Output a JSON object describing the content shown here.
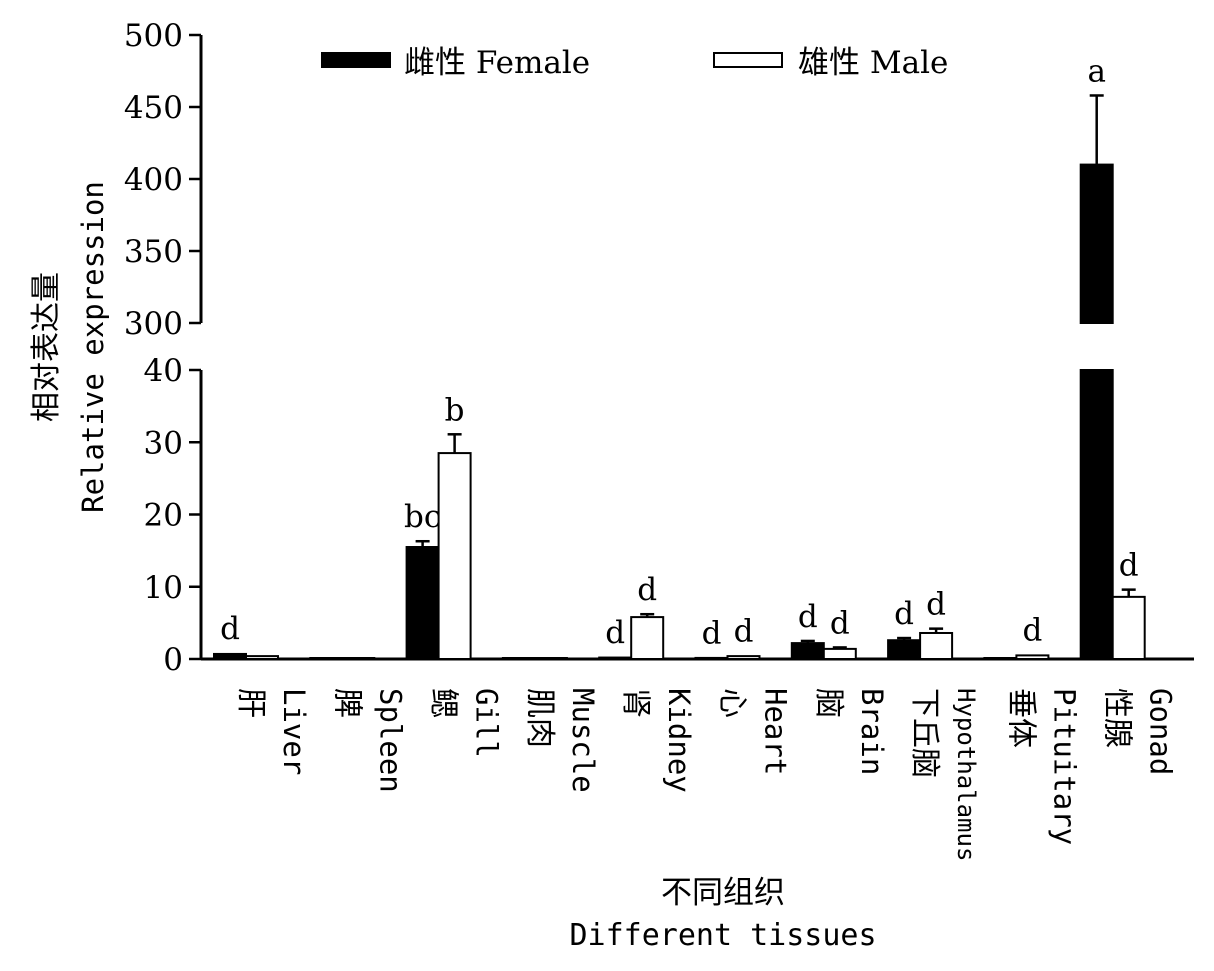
{
  "chart_data": {
    "type": "bar",
    "y_axis_break": true,
    "ylim_lower": [
      0,
      40
    ],
    "ylim_upper": [
      300,
      500
    ],
    "yticks_lower": [
      "0",
      "10",
      "20",
      "30",
      "40"
    ],
    "yticks_upper": [
      "300",
      "350",
      "400",
      "450",
      "500"
    ],
    "ylabel_cn": "相对表达量",
    "ylabel_en": "Relative expression",
    "xlabel_cn": "不同组织",
    "xlabel_en": "Different tissues",
    "categories": [
      {
        "cn": "肝",
        "en": "Liver"
      },
      {
        "cn": "脾",
        "en": "Spleen"
      },
      {
        "cn": "鳃",
        "en": "Gill"
      },
      {
        "cn": "肌肉",
        "en": "Muscle"
      },
      {
        "cn": "肾",
        "en": "Kidney"
      },
      {
        "cn": "心",
        "en": "Heart"
      },
      {
        "cn": "脑",
        "en": "Brain"
      },
      {
        "cn": "下丘脑",
        "en": "Hypothalamus"
      },
      {
        "cn": "垂体",
        "en": "Pituitary"
      },
      {
        "cn": "性腺",
        "en": "Gonad"
      }
    ],
    "legend_position": "top",
    "series": [
      {
        "name": "雌性 Female",
        "color": "#000000",
        "values": [
          0.7,
          0.05,
          15.5,
          0.05,
          0.2,
          0.15,
          2.2,
          2.6,
          0.1,
          410
        ],
        "errors": [
          0.1,
          0.0,
          0.8,
          0.0,
          0.1,
          0.05,
          0.3,
          0.3,
          0.05,
          48
        ],
        "letters": [
          "d",
          "",
          "bc",
          "",
          "d",
          "d",
          "d",
          "d",
          "",
          "a"
        ]
      },
      {
        "name": "雄性 Male",
        "color": "#ffffff",
        "values": [
          0.4,
          0.05,
          28.5,
          0.05,
          5.8,
          0.4,
          1.4,
          3.6,
          0.5,
          8.6
        ],
        "errors": [
          0.1,
          0.0,
          2.6,
          0.0,
          0.4,
          0.1,
          0.2,
          0.6,
          0.1,
          1.0
        ],
        "letters": [
          "",
          "",
          "b",
          "",
          "d",
          "d",
          "d",
          "d",
          "d",
          "d"
        ]
      }
    ]
  }
}
